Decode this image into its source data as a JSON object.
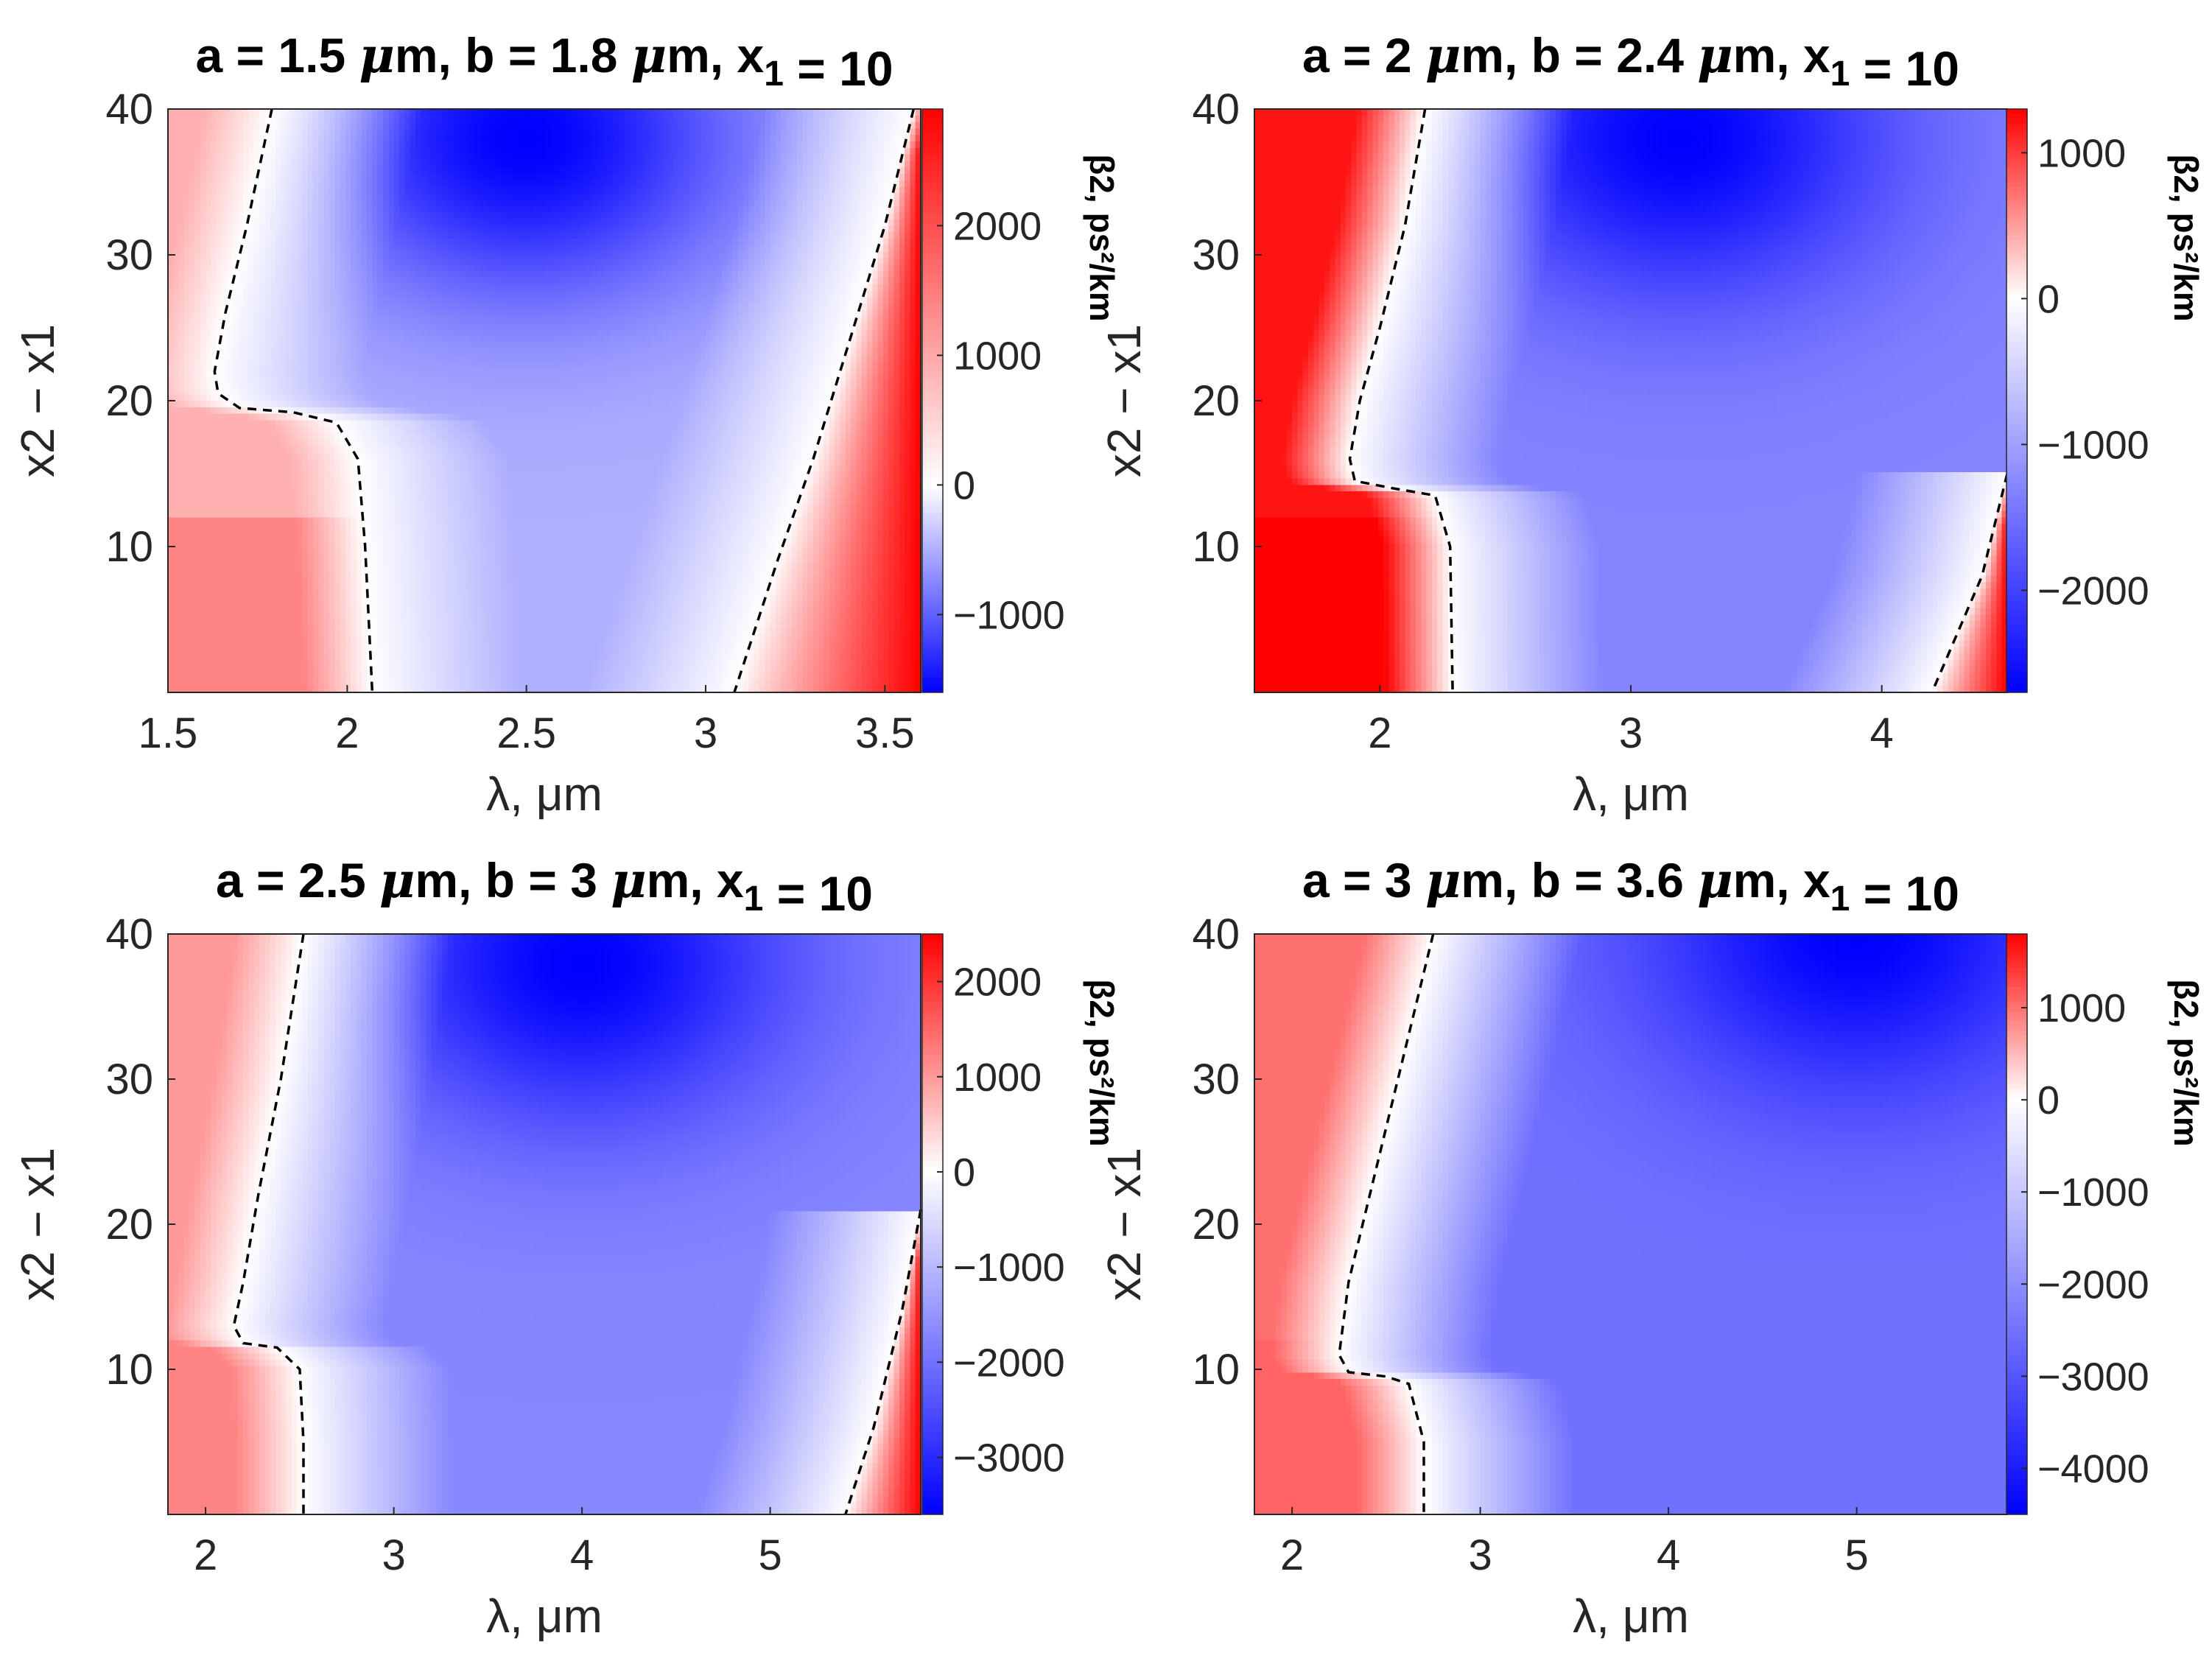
{
  "figure": {
    "colormap": {
      "negative": "#0000ff",
      "zero": "#ffffff",
      "positive": "#ff0000"
    },
    "contour_style": "dashed black line where beta2 = 0"
  },
  "chart_data": [
    {
      "type": "heatmap",
      "title": {
        "a_value": "1.5",
        "b_value": "1.8",
        "x1_value": "10"
      },
      "xlabel": "λ, μm",
      "ylabel": "x2 − x1",
      "xlim": [
        1.5,
        3.6
      ],
      "ylim": [
        0,
        40
      ],
      "xticks": [
        1.5,
        2,
        2.5,
        3,
        3.5
      ],
      "xtick_labels": [
        "1.5",
        "2",
        "2.5",
        "3",
        "3.5"
      ],
      "yticks": [
        10,
        20,
        30,
        40
      ],
      "ytick_labels": [
        "10",
        "20",
        "30",
        "40"
      ],
      "colorbar": {
        "label": "β2, ps²/km",
        "range": [
          -1600,
          2900
        ],
        "ticks": [
          -1000,
          0,
          1000,
          2000
        ],
        "tick_labels": [
          "−1000",
          "0",
          "1000",
          "2000"
        ]
      },
      "zero_contours": [
        [
          [
            1.79,
            40
          ],
          [
            1.72,
            32
          ],
          [
            1.66,
            26
          ],
          [
            1.63,
            22
          ],
          [
            1.64,
            20.5
          ],
          [
            1.7,
            19.5
          ],
          [
            1.85,
            19.2
          ],
          [
            1.97,
            18.5
          ],
          [
            2.03,
            16
          ],
          [
            2.05,
            10
          ],
          [
            2.07,
            0
          ]
        ],
        [
          [
            3.58,
            40
          ],
          [
            3.5,
            32
          ],
          [
            3.4,
            24
          ],
          [
            3.3,
            16
          ],
          [
            3.2,
            9
          ],
          [
            3.08,
            0
          ]
        ]
      ],
      "field_features": {
        "left_value": 900,
        "left_low_value": 1400,
        "min_value": -1600,
        "min_location": [
          2.5,
          38
        ],
        "right_value": 2900,
        "right_location": [
          3.6,
          0
        ],
        "blue_base": -500,
        "zero_slope_per_y": 0.012
      }
    },
    {
      "type": "heatmap",
      "title": {
        "a_value": "2",
        "b_value": "2.4",
        "x1_value": "10"
      },
      "xlabel": "λ, μm",
      "ylabel": "x2 − x1",
      "xlim": [
        1.5,
        4.5
      ],
      "ylim": [
        0,
        40
      ],
      "xticks": [
        2,
        3,
        4
      ],
      "xtick_labels": [
        "2",
        "3",
        "4"
      ],
      "yticks": [
        10,
        20,
        30,
        40
      ],
      "ytick_labels": [
        "10",
        "20",
        "30",
        "40"
      ],
      "colorbar": {
        "label": "β2, ps²/km",
        "range": [
          -2700,
          1300
        ],
        "ticks": [
          -2000,
          -1000,
          0,
          1000
        ],
        "tick_labels": [
          "−2000",
          "−1000",
          "0",
          "1000"
        ]
      },
      "zero_contours": [
        [
          [
            2.18,
            40
          ],
          [
            2.1,
            32
          ],
          [
            2.0,
            25
          ],
          [
            1.92,
            20
          ],
          [
            1.88,
            16
          ],
          [
            1.9,
            14.5
          ],
          [
            2.05,
            14
          ],
          [
            2.22,
            13.5
          ],
          [
            2.28,
            10
          ],
          [
            2.29,
            0
          ]
        ],
        [
          [
            4.5,
            15
          ],
          [
            4.4,
            8
          ],
          [
            4.3,
            4
          ],
          [
            4.2,
            0
          ]
        ]
      ],
      "field_features": {
        "left_value": 1200,
        "left_low_value": 1300,
        "min_value": -2700,
        "min_location": [
          3.2,
          38
        ],
        "right_value": 1300,
        "right_location": [
          4.5,
          0
        ],
        "blue_base": -1300,
        "zero_slope_per_y": 0.012
      }
    },
    {
      "type": "heatmap",
      "title": {
        "a_value": "2.5",
        "b_value": "3",
        "x1_value": "10"
      },
      "xlabel": "λ, μm",
      "ylabel": "x2 − x1",
      "xlim": [
        1.8,
        5.8
      ],
      "ylim": [
        0,
        40
      ],
      "xticks": [
        2,
        3,
        4,
        5
      ],
      "xtick_labels": [
        "2",
        "3",
        "4",
        "5"
      ],
      "yticks": [
        10,
        20,
        30,
        40
      ],
      "ytick_labels": [
        "10",
        "20",
        "30",
        "40"
      ],
      "colorbar": {
        "label": "β2, ps²/km",
        "range": [
          -3600,
          2500
        ],
        "ticks": [
          -3000,
          -2000,
          -1000,
          0,
          1000,
          2000
        ],
        "tick_labels": [
          "−3000",
          "−2000",
          "−1000",
          "0",
          "1000",
          "2000"
        ]
      },
      "zero_contours": [
        [
          [
            2.52,
            40
          ],
          [
            2.4,
            30
          ],
          [
            2.28,
            22
          ],
          [
            2.2,
            16
          ],
          [
            2.15,
            13
          ],
          [
            2.2,
            11.8
          ],
          [
            2.38,
            11.5
          ],
          [
            2.5,
            10
          ],
          [
            2.52,
            5
          ],
          [
            2.52,
            0
          ]
        ],
        [
          [
            5.8,
            21
          ],
          [
            5.7,
            14
          ],
          [
            5.55,
            6
          ],
          [
            5.4,
            0
          ]
        ]
      ],
      "field_features": {
        "left_value": 1000,
        "left_low_value": 1200,
        "min_value": -3600,
        "min_location": [
          4.0,
          38
        ],
        "right_value": 2500,
        "right_location": [
          5.8,
          0
        ],
        "blue_base": -1700,
        "zero_slope_per_y": 0.012
      }
    },
    {
      "type": "heatmap",
      "title": {
        "a_value": "3",
        "b_value": "3.6",
        "x1_value": "10"
      },
      "xlabel": "λ, μm",
      "ylabel": "x2 − x1",
      "xlim": [
        1.8,
        5.8
      ],
      "ylim": [
        0,
        40
      ],
      "xticks": [
        2,
        3,
        4,
        5
      ],
      "xtick_labels": [
        "2",
        "3",
        "4",
        "5"
      ],
      "yticks": [
        10,
        20,
        30,
        40
      ],
      "ytick_labels": [
        "10",
        "20",
        "30",
        "40"
      ],
      "colorbar": {
        "label": "β2, ps²/km",
        "range": [
          -4500,
          1800
        ],
        "ticks": [
          -4000,
          -3000,
          -2000,
          -1000,
          0,
          1000
        ],
        "tick_labels": [
          "−4000",
          "−3000",
          "−2000",
          "−1000",
          "0",
          "1000"
        ]
      },
      "zero_contours": [
        [
          [
            2.75,
            40
          ],
          [
            2.6,
            32
          ],
          [
            2.45,
            24
          ],
          [
            2.3,
            16
          ],
          [
            2.25,
            11
          ],
          [
            2.3,
            9.8
          ],
          [
            2.5,
            9.5
          ],
          [
            2.62,
            9
          ],
          [
            2.7,
            5
          ],
          [
            2.7,
            0
          ]
        ]
      ],
      "field_features": {
        "left_value": 1000,
        "left_low_value": 1100,
        "min_value": -4500,
        "min_location": [
          5.0,
          40
        ],
        "right_value": null,
        "right_location": null,
        "blue_base": -2500,
        "zero_slope_per_y": 0.012
      }
    }
  ]
}
